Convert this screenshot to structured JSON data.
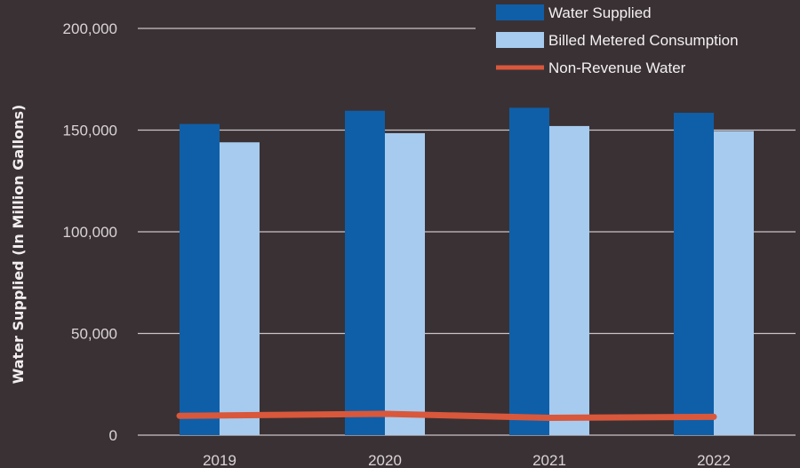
{
  "chart_data": {
    "type": "bar",
    "ylabel": "Water Supplied  (In Million Gallons)",
    "xlabel": "",
    "categories": [
      "2019",
      "2020",
      "2021",
      "2022"
    ],
    "ylim": [
      0,
      200000
    ],
    "yticks": [
      0,
      50000,
      100000,
      150000,
      200000
    ],
    "ytick_labels": [
      "0",
      "50,000",
      "100,000",
      "150,000",
      "200,000"
    ],
    "grid": true,
    "legend_position": "top-right",
    "series": [
      {
        "name": "Water Supplied",
        "type": "bar",
        "color": "#0f5fa8",
        "values": [
          153000,
          159500,
          161000,
          158500
        ]
      },
      {
        "name": "Billed Metered Consumption",
        "type": "bar",
        "color": "#a6cbee",
        "values": [
          144000,
          148500,
          152000,
          149500
        ]
      },
      {
        "name": "Non-Revenue Water",
        "type": "line",
        "color": "#d9573b",
        "values": [
          9500,
          10500,
          8500,
          9000
        ]
      }
    ]
  }
}
